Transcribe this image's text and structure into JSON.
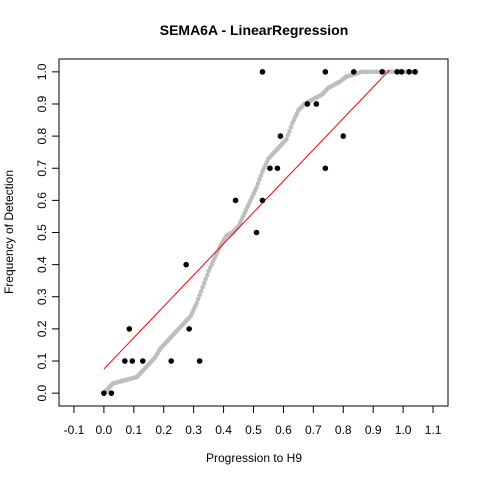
{
  "chart_data": {
    "type": "scatter",
    "title": "SEMA6A - LinearRegression",
    "xlabel": "Progression to H9",
    "ylabel": "Frequency of Detection",
    "xlim": [
      -0.15,
      1.15
    ],
    "ylim": [
      -0.04,
      1.04
    ],
    "x_ticks": [
      "-0.1",
      "0.0",
      "0.1",
      "0.2",
      "0.3",
      "0.4",
      "0.5",
      "0.6",
      "0.7",
      "0.8",
      "0.9",
      "1.0",
      "1.1"
    ],
    "y_ticks": [
      "0.0",
      "0.1",
      "0.2",
      "0.3",
      "0.4",
      "0.5",
      "0.6",
      "0.7",
      "0.8",
      "0.9",
      "1.0"
    ],
    "series": [
      {
        "kind": "cumulative_curve",
        "color": "#bebebe",
        "points": [
          [
            0.0,
            0.0
          ],
          [
            0.01,
            0.01
          ],
          [
            0.02,
            0.02
          ],
          [
            0.03,
            0.03
          ],
          [
            0.05,
            0.035
          ],
          [
            0.07,
            0.04
          ],
          [
            0.09,
            0.045
          ],
          [
            0.11,
            0.05
          ],
          [
            0.13,
            0.07
          ],
          [
            0.15,
            0.09
          ],
          [
            0.17,
            0.11
          ],
          [
            0.19,
            0.14
          ],
          [
            0.21,
            0.16
          ],
          [
            0.23,
            0.18
          ],
          [
            0.25,
            0.2
          ],
          [
            0.27,
            0.22
          ],
          [
            0.29,
            0.24
          ],
          [
            0.31,
            0.28
          ],
          [
            0.33,
            0.33
          ],
          [
            0.35,
            0.38
          ],
          [
            0.37,
            0.42
          ],
          [
            0.39,
            0.46
          ],
          [
            0.41,
            0.49
          ],
          [
            0.43,
            0.5
          ],
          [
            0.45,
            0.52
          ],
          [
            0.47,
            0.56
          ],
          [
            0.49,
            0.6
          ],
          [
            0.51,
            0.64
          ],
          [
            0.53,
            0.69
          ],
          [
            0.55,
            0.73
          ],
          [
            0.57,
            0.75
          ],
          [
            0.59,
            0.77
          ],
          [
            0.61,
            0.79
          ],
          [
            0.63,
            0.84
          ],
          [
            0.65,
            0.88
          ],
          [
            0.67,
            0.9
          ],
          [
            0.69,
            0.91
          ],
          [
            0.71,
            0.92
          ],
          [
            0.73,
            0.93
          ],
          [
            0.75,
            0.95
          ],
          [
            0.77,
            0.96
          ],
          [
            0.79,
            0.97
          ],
          [
            0.81,
            0.985
          ],
          [
            0.83,
            0.99
          ],
          [
            0.86,
            1.0
          ],
          [
            0.9,
            1.0
          ],
          [
            0.95,
            1.0
          ],
          [
            1.0,
            1.0
          ],
          [
            1.04,
            1.0
          ]
        ]
      },
      {
        "kind": "observed_points",
        "color": "#000000",
        "points": [
          [
            0.0,
            0.0
          ],
          [
            0.025,
            0.0
          ],
          [
            0.07,
            0.1
          ],
          [
            0.085,
            0.2
          ],
          [
            0.095,
            0.1
          ],
          [
            0.13,
            0.1
          ],
          [
            0.225,
            0.1
          ],
          [
            0.275,
            0.4
          ],
          [
            0.285,
            0.2
          ],
          [
            0.32,
            0.1
          ],
          [
            0.44,
            0.6
          ],
          [
            0.51,
            0.5
          ],
          [
            0.53,
            1.0
          ],
          [
            0.53,
            0.6
          ],
          [
            0.555,
            0.7
          ],
          [
            0.58,
            0.7
          ],
          [
            0.59,
            0.8
          ],
          [
            0.68,
            0.9
          ],
          [
            0.71,
            0.9
          ],
          [
            0.74,
            1.0
          ],
          [
            0.74,
            0.7
          ],
          [
            0.8,
            0.8
          ],
          [
            0.835,
            1.0
          ],
          [
            0.93,
            1.0
          ],
          [
            0.98,
            1.0
          ],
          [
            0.995,
            1.0
          ],
          [
            1.02,
            1.0
          ],
          [
            1.04,
            1.0
          ]
        ]
      },
      {
        "kind": "regression_line",
        "color": "#ff0000",
        "intercept": 0.075,
        "slope": 0.975,
        "x_range": [
          0.0,
          0.955
        ]
      }
    ]
  }
}
